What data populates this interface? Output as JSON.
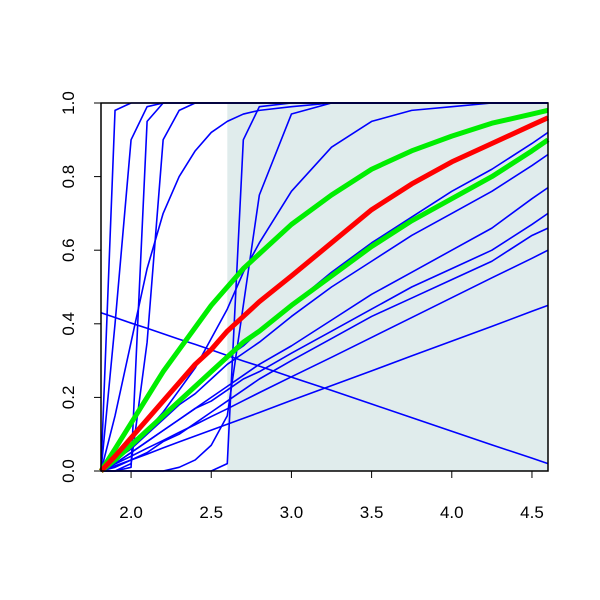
{
  "chart_data": {
    "type": "line",
    "x": [
      1.8125,
      1.9,
      2.0,
      2.1,
      2.2,
      2.3,
      2.4,
      2.5,
      2.6,
      2.7,
      2.8,
      3.0,
      3.25,
      3.5,
      3.75,
      4.0,
      4.25,
      4.5,
      4.6
    ],
    "series": [
      {
        "color": "#0000ff",
        "values": [
          0,
          0.98,
          1,
          1,
          1,
          1,
          1,
          1,
          1,
          1,
          1,
          1,
          1,
          1,
          1,
          1,
          1,
          1,
          1
        ]
      },
      {
        "color": "#0000ff",
        "values": [
          0,
          0.4,
          0.9,
          0.99,
          1,
          1,
          1,
          1,
          1,
          1,
          1,
          1,
          1,
          1,
          1,
          1,
          1,
          1,
          1
        ]
      },
      {
        "color": "#0000ff",
        "values": [
          0,
          0,
          0.01,
          0.95,
          1,
          1,
          1,
          1,
          1,
          1,
          1,
          1,
          1,
          1,
          1,
          1,
          1,
          1,
          1
        ]
      },
      {
        "color": "#0000ff",
        "values": [
          0,
          0,
          0.02,
          0.35,
          0.9,
          0.98,
          1,
          1,
          1,
          1,
          1,
          1,
          1,
          1,
          1,
          1,
          1,
          1,
          1
        ]
      },
      {
        "color": "#0000ff",
        "values": [
          0,
          0.15,
          0.35,
          0.55,
          0.7,
          0.8,
          0.87,
          0.92,
          0.95,
          0.97,
          0.98,
          0.99,
          1,
          1,
          1,
          1,
          1,
          1,
          1
        ]
      },
      {
        "color": "#0000ff",
        "values": [
          0,
          0,
          0,
          0,
          0,
          0,
          0,
          0,
          0.02,
          0.9,
          0.99,
          1,
          1,
          1,
          1,
          1,
          1,
          1,
          1
        ]
      },
      {
        "color": "#0000ff",
        "values": [
          0,
          0,
          0,
          0,
          0,
          0.01,
          0.03,
          0.07,
          0.15,
          0.45,
          0.75,
          0.97,
          1,
          1,
          1,
          1,
          1,
          1,
          1
        ]
      },
      {
        "color": "#0000ff",
        "values": [
          0,
          0.03,
          0.07,
          0.11,
          0.16,
          0.22,
          0.28,
          0.36,
          0.44,
          0.54,
          0.62,
          0.76,
          0.88,
          0.95,
          0.98,
          0.99,
          1,
          1,
          1
        ]
      },
      {
        "color": "#0000ff",
        "values": [
          0,
          0.03,
          0.07,
          0.11,
          0.15,
          0.19,
          0.23,
          0.27,
          0.31,
          0.34,
          0.38,
          0.45,
          0.54,
          0.62,
          0.69,
          0.76,
          0.82,
          0.89,
          0.92
        ]
      },
      {
        "color": "#0000ff",
        "values": [
          0,
          0.03,
          0.06,
          0.1,
          0.14,
          0.18,
          0.21,
          0.25,
          0.29,
          0.32,
          0.35,
          0.42,
          0.5,
          0.57,
          0.64,
          0.7,
          0.76,
          0.83,
          0.86
        ]
      },
      {
        "color": "#0000ff",
        "values": [
          0,
          0.02,
          0.05,
          0.08,
          0.11,
          0.14,
          0.17,
          0.2,
          0.23,
          0.26,
          0.29,
          0.34,
          0.41,
          0.48,
          0.54,
          0.6,
          0.66,
          0.74,
          0.77
        ]
      },
      {
        "color": "#0000ff",
        "values": [
          0,
          0.02,
          0.05,
          0.08,
          0.11,
          0.14,
          0.17,
          0.19,
          0.22,
          0.25,
          0.27,
          0.32,
          0.38,
          0.44,
          0.5,
          0.55,
          0.6,
          0.67,
          0.7
        ]
      },
      {
        "color": "#0000ff",
        "values": [
          0,
          0.01,
          0.03,
          0.05,
          0.08,
          0.1,
          0.13,
          0.16,
          0.19,
          0.22,
          0.25,
          0.3,
          0.36,
          0.42,
          0.47,
          0.52,
          0.57,
          0.64,
          0.66
        ]
      },
      {
        "color": "#0000ff",
        "values": [
          0,
          0.019,
          0.04,
          0.062,
          0.083,
          0.105,
          0.126,
          0.148,
          0.169,
          0.191,
          0.213,
          0.256,
          0.309,
          0.363,
          0.417,
          0.471,
          0.525,
          0.578,
          0.6
        ]
      },
      {
        "color": "#0000ff",
        "values": [
          0,
          0.014,
          0.03,
          0.046,
          0.063,
          0.079,
          0.095,
          0.111,
          0.127,
          0.143,
          0.159,
          0.192,
          0.232,
          0.272,
          0.313,
          0.353,
          0.393,
          0.434,
          0.45
        ]
      },
      {
        "color": "#0000ff",
        "values": [
          0.43,
          0.417,
          0.402,
          0.388,
          0.373,
          0.358,
          0.344,
          0.329,
          0.314,
          0.299,
          0.285,
          0.255,
          0.219,
          0.182,
          0.145,
          0.108,
          0.071,
          0.035,
          0.02
        ]
      },
      {
        "color": "#00ee00",
        "values": [
          0,
          0.06,
          0.13,
          0.2,
          0.27,
          0.33,
          0.39,
          0.45,
          0.5,
          0.55,
          0.59,
          0.67,
          0.75,
          0.82,
          0.87,
          0.91,
          0.945,
          0.97,
          0.98
        ]
      },
      {
        "color": "#00ee00",
        "values": [
          0,
          0.03,
          0.07,
          0.11,
          0.15,
          0.19,
          0.23,
          0.27,
          0.31,
          0.35,
          0.38,
          0.45,
          0.53,
          0.61,
          0.68,
          0.74,
          0.8,
          0.87,
          0.9
        ]
      },
      {
        "color": "#ff0000",
        "values": [
          0,
          0.04,
          0.09,
          0.14,
          0.19,
          0.24,
          0.29,
          0.33,
          0.38,
          0.42,
          0.46,
          0.53,
          0.62,
          0.71,
          0.78,
          0.84,
          0.89,
          0.94,
          0.96
        ]
      }
    ],
    "shaded_region": {
      "x0": 2.6,
      "color": "#e0ecec"
    },
    "xlim": [
      1.8125,
      4.6
    ],
    "ylim": [
      0,
      1
    ],
    "xticks": [
      {
        "value": 2,
        "label": "2.0"
      },
      2.5,
      {
        "value": 3,
        "label": "3.0"
      },
      3.5,
      {
        "value": 4,
        "label": "4.0"
      },
      4.5
    ],
    "yticks": [
      {
        "value": 0,
        "label": "0.0"
      },
      0.2,
      0.4,
      0.6,
      0.8,
      {
        "value": 1,
        "label": "1.0"
      }
    ]
  }
}
